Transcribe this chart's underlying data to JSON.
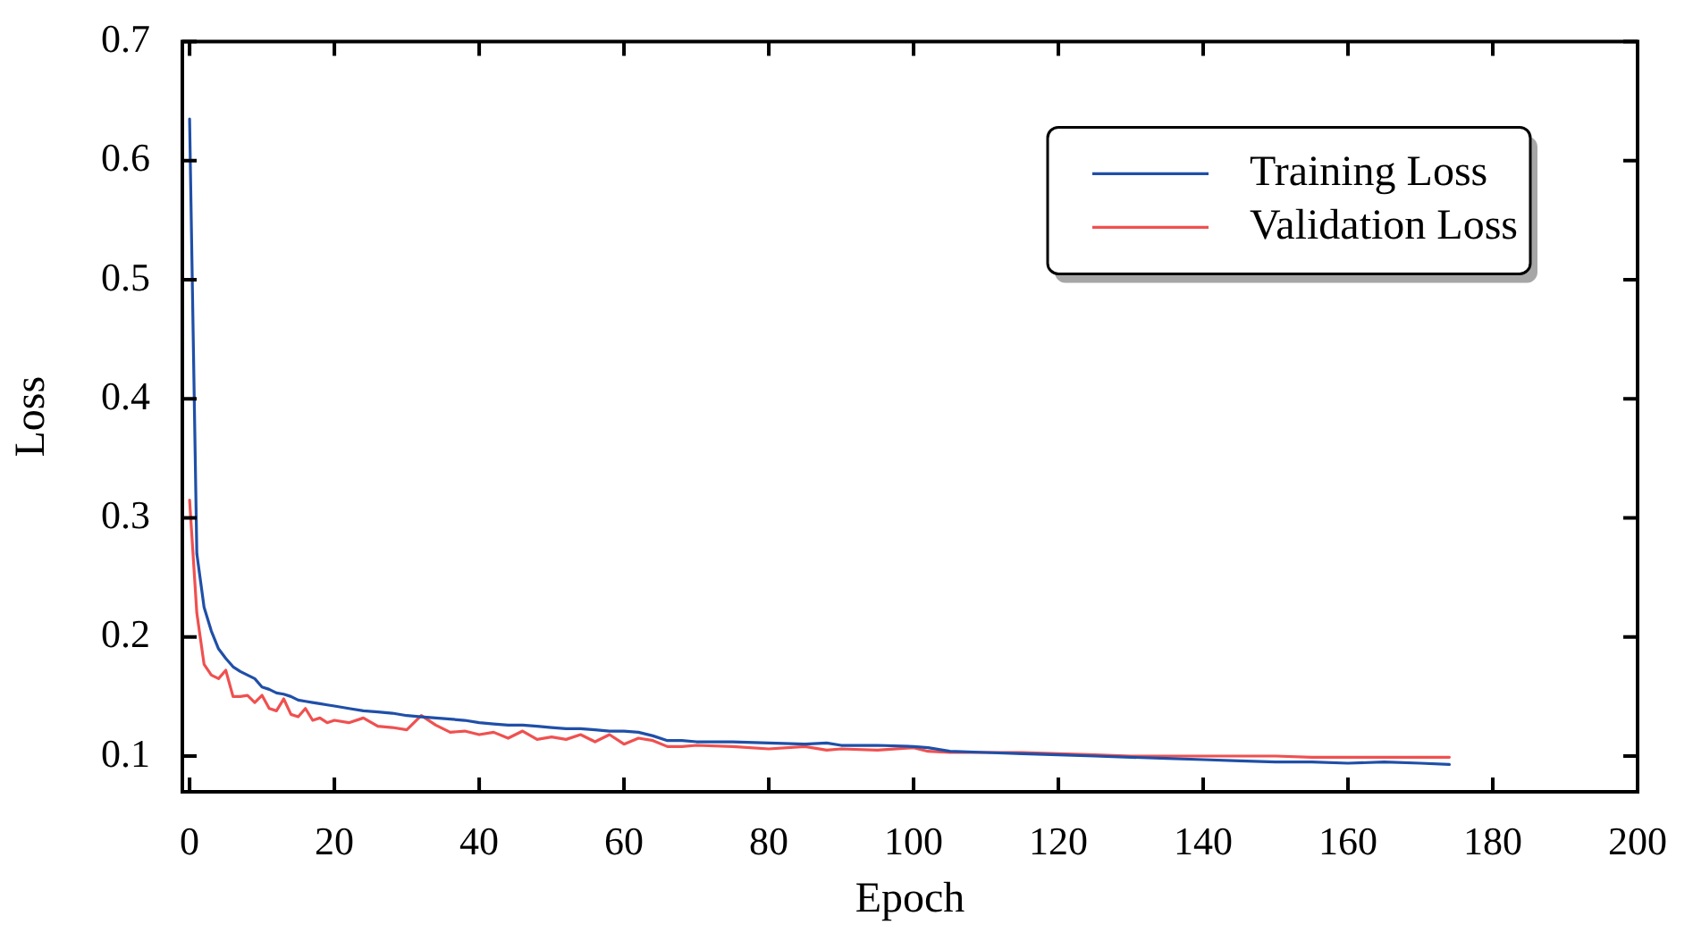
{
  "chart_data": {
    "type": "line",
    "xlabel": "Epoch",
    "ylabel": "Loss",
    "xlim": [
      -1,
      200
    ],
    "xticks": [
      0,
      20,
      40,
      60,
      80,
      100,
      120,
      140,
      160,
      180,
      200
    ],
    "ylim": [
      0.07,
      0.7
    ],
    "yticks": [
      0.1,
      0.2,
      0.3,
      0.4,
      0.5,
      0.6,
      0.7
    ],
    "grid": false,
    "legend": "top right",
    "marker": "none",
    "line_style": "solid",
    "x": [
      0,
      1,
      2,
      3,
      4,
      5,
      6,
      7,
      8,
      9,
      10,
      11,
      12,
      13,
      14,
      15,
      16,
      17,
      18,
      19,
      20,
      22,
      24,
      26,
      28,
      30,
      32,
      34,
      36,
      38,
      40,
      42,
      44,
      46,
      48,
      50,
      52,
      54,
      56,
      58,
      60,
      62,
      64,
      66,
      68,
      70,
      75,
      80,
      85,
      88,
      90,
      95,
      100,
      102,
      105,
      110,
      115,
      120,
      125,
      130,
      135,
      140,
      145,
      150,
      155,
      160,
      165,
      170,
      174
    ],
    "series": [
      {
        "name": "Training Loss",
        "color": "#1f4fa8",
        "values": [
          0.635,
          0.27,
          0.225,
          0.205,
          0.19,
          0.182,
          0.175,
          0.171,
          0.168,
          0.165,
          0.158,
          0.156,
          0.153,
          0.152,
          0.15,
          0.147,
          0.146,
          0.145,
          0.144,
          0.143,
          0.142,
          0.14,
          0.138,
          0.137,
          0.136,
          0.134,
          0.133,
          0.132,
          0.131,
          0.13,
          0.128,
          0.127,
          0.126,
          0.126,
          0.125,
          0.124,
          0.123,
          0.123,
          0.122,
          0.121,
          0.121,
          0.12,
          0.117,
          0.113,
          0.113,
          0.112,
          0.112,
          0.111,
          0.11,
          0.111,
          0.109,
          0.109,
          0.108,
          0.107,
          0.104,
          0.103,
          0.102,
          0.101,
          0.1,
          0.099,
          0.098,
          0.097,
          0.096,
          0.095,
          0.095,
          0.094,
          0.095,
          0.094,
          0.093
        ]
      },
      {
        "name": "Validation Loss",
        "color": "#f05050",
        "values": [
          0.315,
          0.22,
          0.177,
          0.168,
          0.165,
          0.172,
          0.15,
          0.15,
          0.151,
          0.145,
          0.151,
          0.14,
          0.138,
          0.148,
          0.135,
          0.133,
          0.14,
          0.13,
          0.132,
          0.128,
          0.13,
          0.128,
          0.132,
          0.125,
          0.124,
          0.122,
          0.134,
          0.126,
          0.12,
          0.121,
          0.118,
          0.12,
          0.115,
          0.121,
          0.114,
          0.116,
          0.114,
          0.118,
          0.112,
          0.118,
          0.11,
          0.115,
          0.113,
          0.108,
          0.108,
          0.109,
          0.108,
          0.106,
          0.108,
          0.105,
          0.106,
          0.105,
          0.107,
          0.104,
          0.103,
          0.103,
          0.103,
          0.102,
          0.101,
          0.1,
          0.1,
          0.1,
          0.1,
          0.1,
          0.099,
          0.099,
          0.099,
          0.099,
          0.099
        ]
      }
    ]
  }
}
